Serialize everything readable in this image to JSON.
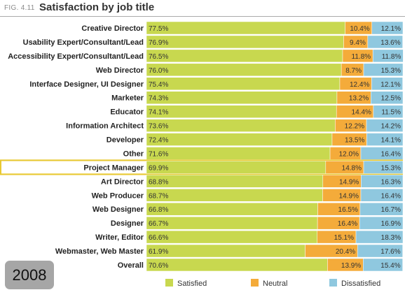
{
  "figure_label": "FIG. 4.11",
  "year": "2008",
  "colors": {
    "satisfied": "#c8d84f",
    "neutral": "#f4ab3a",
    "dissatisfied": "#8fc8df",
    "highlight": "#e8c933"
  },
  "chart_data": {
    "type": "bar",
    "stacked": true,
    "orientation": "horizontal",
    "title": "Satisfaction by job title",
    "categories": [
      "Creative Director",
      "Usability Expert/Consultant/Lead",
      "Accessibility Expert/Consultant/Lead",
      "Web Director",
      "Interface Designer, UI Designer",
      "Marketer",
      "Educator",
      "Information Architect",
      "Developer",
      "Other",
      "Project Manager",
      "Art Director",
      "Web Producer",
      "Web Designer",
      "Designer",
      "Writer, Editor",
      "Webmaster, Web Master",
      "Overall"
    ],
    "series": [
      {
        "name": "Satisfied",
        "values": [
          77.5,
          76.9,
          76.5,
          76.0,
          75.4,
          74.3,
          74.1,
          73.6,
          72.4,
          71.6,
          69.9,
          68.8,
          68.7,
          66.8,
          66.7,
          66.6,
          61.9,
          70.6
        ],
        "labels": [
          "77.5%",
          "76.9%",
          "76.5%",
          "76.0%",
          "75.4%",
          "74.3%",
          "74.1%",
          "73.6%",
          "72.4%",
          "71.6%",
          "69.9%",
          "68.8%",
          "68.7%",
          "66.8%",
          "66.7%",
          "66.6%",
          "61.9%",
          "70.6%"
        ]
      },
      {
        "name": "Neutral",
        "values": [
          10.4,
          9.4,
          11.8,
          8.7,
          12.4,
          13.2,
          14.4,
          12.2,
          13.5,
          12.0,
          14.8,
          14.9,
          14.9,
          16.5,
          16.4,
          15.1,
          20.4,
          13.9
        ],
        "labels": [
          "10.4%",
          "9.4%",
          "11.8%",
          "8.7%",
          "12.4%",
          "13.2%",
          "14.4%",
          "12.2%",
          "13.5%",
          "12.0%",
          "14.8%",
          "14.9%",
          "14.9%",
          "16.5%",
          "16.4%",
          "15.1%",
          "20.4%",
          "13.9%"
        ]
      },
      {
        "name": "Dissatisfied",
        "values": [
          12.1,
          13.6,
          11.8,
          15.3,
          12.1,
          12.5,
          11.5,
          14.2,
          14.1,
          16.4,
          15.3,
          16.3,
          16.4,
          16.7,
          16.9,
          18.3,
          17.6,
          15.4
        ],
        "labels": [
          "12.1%",
          "13.6%",
          "11.8%",
          "15.3%",
          "12.1%",
          "12.5%",
          "11.5%",
          "14.2%",
          "14.1%",
          "16.4%",
          "15.3%",
          "16.3%",
          "16.4%",
          "16.7%",
          "16.9%",
          "18.3%",
          "17.6%",
          "15.4%"
        ]
      }
    ],
    "highlighted_category": "Project Manager",
    "legend_position": "bottom",
    "grid": false,
    "xlim": [
      0,
      100
    ]
  }
}
